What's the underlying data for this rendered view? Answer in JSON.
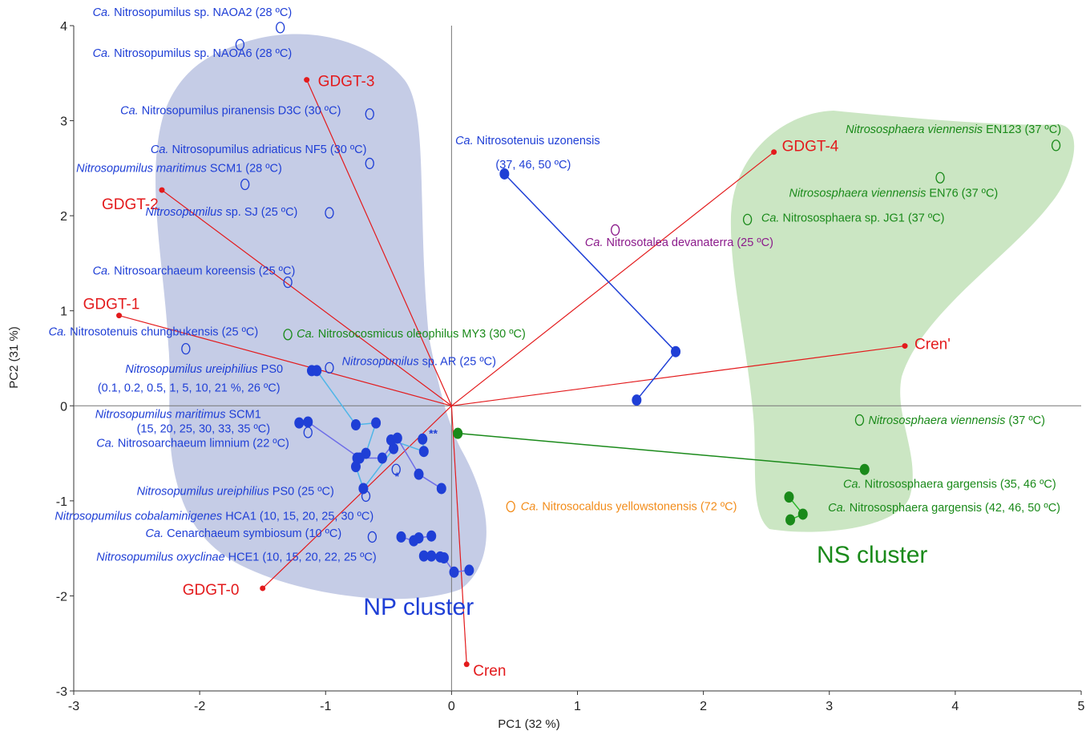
{
  "chart_data": {
    "type": "scatter",
    "xlabel": "PC1 (32 %)",
    "ylabel": "PC2 (31 %)",
    "xlim": [
      -3,
      5
    ],
    "ylim": [
      -3,
      4
    ],
    "xticks": [
      -3,
      -2,
      -1,
      0,
      1,
      2,
      3,
      4,
      5
    ],
    "yticks": [
      -3,
      -2,
      -1,
      0,
      1,
      2,
      3,
      4
    ],
    "xtick_labels": [
      "-3",
      "-2",
      "-1",
      "0",
      "1",
      "2",
      "3",
      "4",
      "5"
    ],
    "ytick_labels": [
      "-3",
      "-2",
      "-1",
      "0",
      "1",
      "2",
      "3",
      "4"
    ],
    "colors": {
      "np": "#1f3fd6",
      "ns": "#1a8a1a",
      "red": "#e31a1c",
      "purple": "#8b1a8b",
      "orange": "#f28c1a",
      "np_region": "#c5cce6",
      "ns_region": "#cbe6c3",
      "cyan": "#4fb6e8",
      "lilac": "#6e6ee8",
      "green_line": "#2eb82e"
    },
    "clusters": [
      {
        "label": "NP cluster",
        "x": -0.7,
        "y": -2.2,
        "color": "#1f3fd6"
      },
      {
        "label": "NS cluster",
        "x": 2.9,
        "y": -1.65,
        "color": "#1a8a1a"
      }
    ],
    "loadings": [
      {
        "name": "GDGT-0",
        "x": -1.5,
        "y": -1.92
      },
      {
        "name": "GDGT-1",
        "x": -2.64,
        "y": 0.95
      },
      {
        "name": "GDGT-2",
        "x": -2.3,
        "y": 2.27
      },
      {
        "name": "GDGT-3",
        "x": -1.15,
        "y": 3.43
      },
      {
        "name": "GDGT-4",
        "x": 2.56,
        "y": 2.67
      },
      {
        "name": "Cren'",
        "x": 3.6,
        "y": 0.63
      },
      {
        "name": "Cren",
        "x": 0.12,
        "y": -2.72
      }
    ],
    "annotations": [
      {
        "text": "*",
        "x": -0.45,
        "y": -0.78
      },
      {
        "text": "**",
        "x": -0.18,
        "y": -0.33
      }
    ],
    "points": [
      {
        "x": -1.36,
        "y": 3.98,
        "color": "#1f3fd6",
        "label_parts": [
          {
            "t": "Ca.",
            "i": true
          },
          {
            "t": " Nitrosopumilus sp. NAOA2 (28 ºC)"
          }
        ],
        "lx": -2.85,
        "ly": 4.1
      },
      {
        "x": -1.68,
        "y": 3.8,
        "color": "#1f3fd6",
        "label_parts": [
          {
            "t": "Ca.",
            "i": true
          },
          {
            "t": " Nitrosopumilus sp. NAOA6 (28 ºC)"
          }
        ],
        "lx": -2.85,
        "ly": 3.67
      },
      {
        "x": -0.65,
        "y": 3.07,
        "color": "#1f3fd6",
        "label_parts": [
          {
            "t": "Ca.",
            "i": true
          },
          {
            "t": " Nitrosopumilus piranensis D3C (30 ºC)"
          }
        ],
        "lx": -2.63,
        "ly": 3.07
      },
      {
        "x": -0.65,
        "y": 2.55,
        "color": "#1f3fd6",
        "label_parts": [
          {
            "t": "Ca.",
            "i": true
          },
          {
            "t": " Nitrosopumilus adriaticus NF5 (30 ºC)"
          }
        ],
        "lx": -2.39,
        "ly": 2.66
      },
      {
        "x": -1.64,
        "y": 2.33,
        "color": "#1f3fd6",
        "label_parts": [
          {
            "t": "Nitrosopumilus maritimus",
            "i": true
          },
          {
            "t": " SCM1 (28 ºC)"
          }
        ],
        "lx": -2.98,
        "ly": 2.46
      },
      {
        "x": -0.97,
        "y": 2.03,
        "color": "#1f3fd6",
        "label_parts": [
          {
            "t": "Nitrosopumilus",
            "i": true
          },
          {
            "t": " sp. SJ (25 ºC)"
          }
        ],
        "lx": -2.43,
        "ly": 2.0
      },
      {
        "x": -1.3,
        "y": 1.3,
        "color": "#1f3fd6",
        "label_parts": [
          {
            "t": "Ca.",
            "i": true
          },
          {
            "t": " Nitrosoarchaeum koreensis (25 ºC)"
          }
        ],
        "lx": -2.85,
        "ly": 1.38
      },
      {
        "x": -2.11,
        "y": 0.6,
        "color": "#1f3fd6",
        "label_parts": [
          {
            "t": "Ca.",
            "i": true
          },
          {
            "t": " Nitrosotenuis chungbukensis (25 ºC)"
          }
        ],
        "lx": -3.2,
        "ly": 0.74
      },
      {
        "x": -0.97,
        "y": 0.4,
        "color": "#1f3fd6",
        "label_parts": [
          {
            "t": "Nitrosopumilus",
            "i": true
          },
          {
            "t": " sp. AR (25 ºC)"
          }
        ],
        "lx": -0.87,
        "ly": 0.43
      },
      {
        "x": -0.44,
        "y": -0.67,
        "color": "#1f3fd6",
        "label_parts": []
      },
      {
        "x": -1.14,
        "y": -0.28,
        "color": "#1f3fd6",
        "label_parts": [
          {
            "t": "Ca.",
            "i": true
          },
          {
            "t": " Nitrosoarchaeum limnium  (22 ºC)"
          }
        ],
        "lx": -2.82,
        "ly": -0.43
      },
      {
        "x": -0.68,
        "y": -0.95,
        "color": "#1f3fd6",
        "label_parts": [
          {
            "t": "Nitrosopumilus ureiphilius",
            "i": true
          },
          {
            "t": " PS0 (25 ºC)"
          }
        ],
        "lx": -2.5,
        "ly": -0.94
      },
      {
        "x": -0.63,
        "y": -1.38,
        "color": "#1f3fd6",
        "label_parts": [
          {
            "t": "Ca.",
            "i": true
          },
          {
            "t": " Cenarchaeum symbiosum (10 ºC)"
          }
        ],
        "lx": -2.43,
        "ly": -1.38
      },
      {
        "x": 1.3,
        "y": 1.85,
        "color": "#8b1a8b",
        "label_parts": [
          {
            "t": "Ca.",
            "i": true
          },
          {
            "t": " Nitrosotalea devanaterra (25 ºC)"
          }
        ],
        "lx": 1.06,
        "ly": 1.68
      },
      {
        "x": -1.3,
        "y": 0.75,
        "color": "#1a8a1a",
        "label_parts": [
          {
            "t": "Ca.",
            "i": true
          },
          {
            "t": " Nitrosocosmicus oleophilus MY3 (30 ºC)"
          }
        ],
        "lx": -1.23,
        "ly": 0.72
      },
      {
        "x": 4.8,
        "y": 2.74,
        "color": "#1a8a1a",
        "label_parts": [
          {
            "t": "Nitrososphaera viennensis",
            "i": true
          },
          {
            "t": " EN123 (37 ºC)"
          }
        ],
        "lx": 3.13,
        "ly": 2.87
      },
      {
        "x": 3.88,
        "y": 2.4,
        "color": "#1a8a1a",
        "label_parts": [
          {
            "t": "Nitrososphaera viennensis",
            "i": true
          },
          {
            "t": " EN76 (37 ºC)"
          }
        ],
        "lx": 2.68,
        "ly": 2.2
      },
      {
        "x": 2.35,
        "y": 1.96,
        "color": "#1a8a1a",
        "label_parts": [
          {
            "t": "Ca.",
            "i": true
          },
          {
            "t": " Nitrososphaera sp. JG1 (37 ºC)"
          }
        ],
        "lx": 2.46,
        "ly": 1.94
      },
      {
        "x": 3.24,
        "y": -0.15,
        "color": "#1a8a1a",
        "label_parts": [
          {
            "t": "Nitrososphaera viennensis",
            "i": true
          },
          {
            "t": " (37 ºC)"
          }
        ],
        "lx": 3.31,
        "ly": -0.19
      },
      {
        "x": 0.47,
        "y": -1.06,
        "color": "#f28c1a",
        "label_parts": [
          {
            "t": "Ca.",
            "i": true
          },
          {
            "t": " Nitrosocaldus yellowstonensis (72 ºC)"
          }
        ],
        "lx": 0.55,
        "ly": -1.1
      }
    ],
    "groups": [
      {
        "color": "#1f3fd6",
        "line_color": "#1f3fd6",
        "label_parts": [
          {
            "t": "Ca.",
            "i": true
          },
          {
            "t": " Nitrosotenuis uzonensis"
          }
        ],
        "lx": 0.03,
        "ly": 2.75,
        "label2": "(37, 46, 50 ºC)",
        "l2x": 0.35,
        "l2y": 2.5,
        "values": [
          [
            0.42,
            2.44
          ],
          [
            1.78,
            0.57
          ],
          [
            1.47,
            0.06
          ]
        ]
      },
      {
        "color": "#1f3fd6",
        "line_color": "#4fb6e8",
        "label_parts": [
          {
            "t": "Nitrosopumilus ureiphilius",
            "i": true
          },
          {
            "t": " PS0"
          }
        ],
        "lx": -2.59,
        "ly": 0.35,
        "label2": "(0.1, 0.2, 0.5, 1, 5, 10, 21 %, 26 ºC)",
        "l2x": -2.81,
        "l2y": 0.15,
        "values": [
          [
            -1.11,
            0.37
          ],
          [
            -1.07,
            0.37
          ],
          [
            -0.76,
            -0.2
          ],
          [
            -0.6,
            -0.18
          ],
          [
            -0.68,
            -0.5
          ],
          [
            -0.75,
            -0.55
          ],
          [
            -0.76,
            -0.64
          ],
          [
            -0.7,
            -0.87
          ],
          [
            -0.46,
            -0.45
          ],
          [
            -0.48,
            -0.36
          ],
          [
            -0.22,
            -0.48
          ],
          [
            -0.23,
            -0.35
          ]
        ]
      },
      {
        "color": "#1f3fd6",
        "line_color": "#6e6ee8",
        "label_parts": [
          {
            "t": "Nitrosopumilus maritimus",
            "i": true
          },
          {
            "t": " SCM1"
          }
        ],
        "lx": -2.83,
        "ly": -0.13,
        "label2": "(15, 20, 25, 30, 33, 35 ºC)",
        "l2x": -2.5,
        "l2y": -0.28,
        "values": [
          [
            -1.21,
            -0.18
          ],
          [
            -1.14,
            -0.17
          ],
          [
            -0.73,
            -0.55
          ],
          [
            -0.55,
            -0.55
          ],
          [
            -0.43,
            -0.34
          ],
          [
            -0.26,
            -0.72
          ],
          [
            -0.08,
            -0.87
          ]
        ]
      },
      {
        "color": "#1f3fd6",
        "line_color": "#6e6ee8",
        "label_parts": [
          {
            "t": "Nitrosopumilus cobalaminigenes",
            "i": true
          },
          {
            "t": " HCA1 (10, 15, 20, 25, 30 ºC)"
          }
        ],
        "lx": -3.15,
        "ly": -1.2,
        "values": [
          [
            -0.4,
            -1.38
          ],
          [
            -0.3,
            -1.42
          ],
          [
            -0.26,
            -1.39
          ],
          [
            -0.16,
            -1.37
          ]
        ]
      },
      {
        "color": "#1f3fd6",
        "line_color": "#6e6ee8",
        "label_parts": [
          {
            "t": "Nitrosopumilus oxyclinae",
            "i": true
          },
          {
            "t": " HCE1 (10, 15, 20, 22, 25 ºC)"
          }
        ],
        "lx": -2.82,
        "ly": -1.63,
        "values": [
          [
            -0.22,
            -1.58
          ],
          [
            -0.16,
            -1.58
          ],
          [
            -0.09,
            -1.59
          ],
          [
            -0.06,
            -1.6
          ],
          [
            0.02,
            -1.75
          ],
          [
            0.14,
            -1.73
          ]
        ]
      },
      {
        "color": "#1a8a1a",
        "line_color": "#1a8a1a",
        "label_parts": [
          {
            "t": "Ca.",
            "i": true
          },
          {
            "t": " Nitrososphaera gargensis (35, 46 ºC)"
          }
        ],
        "lx": 3.11,
        "ly": -0.86,
        "values": [
          [
            0.05,
            -0.29
          ],
          [
            3.28,
            -0.67
          ]
        ]
      },
      {
        "color": "#1a8a1a",
        "line_color": "#2eb82e",
        "label_parts": [
          {
            "t": "Ca.",
            "i": true
          },
          {
            "t": " Nitrososphaera gargensis (42, 46, 50 ºC)"
          }
        ],
        "lx": 2.99,
        "ly": -1.11,
        "values": [
          [
            2.68,
            -0.96
          ],
          [
            2.79,
            -1.14
          ],
          [
            2.69,
            -1.2
          ]
        ]
      }
    ]
  }
}
